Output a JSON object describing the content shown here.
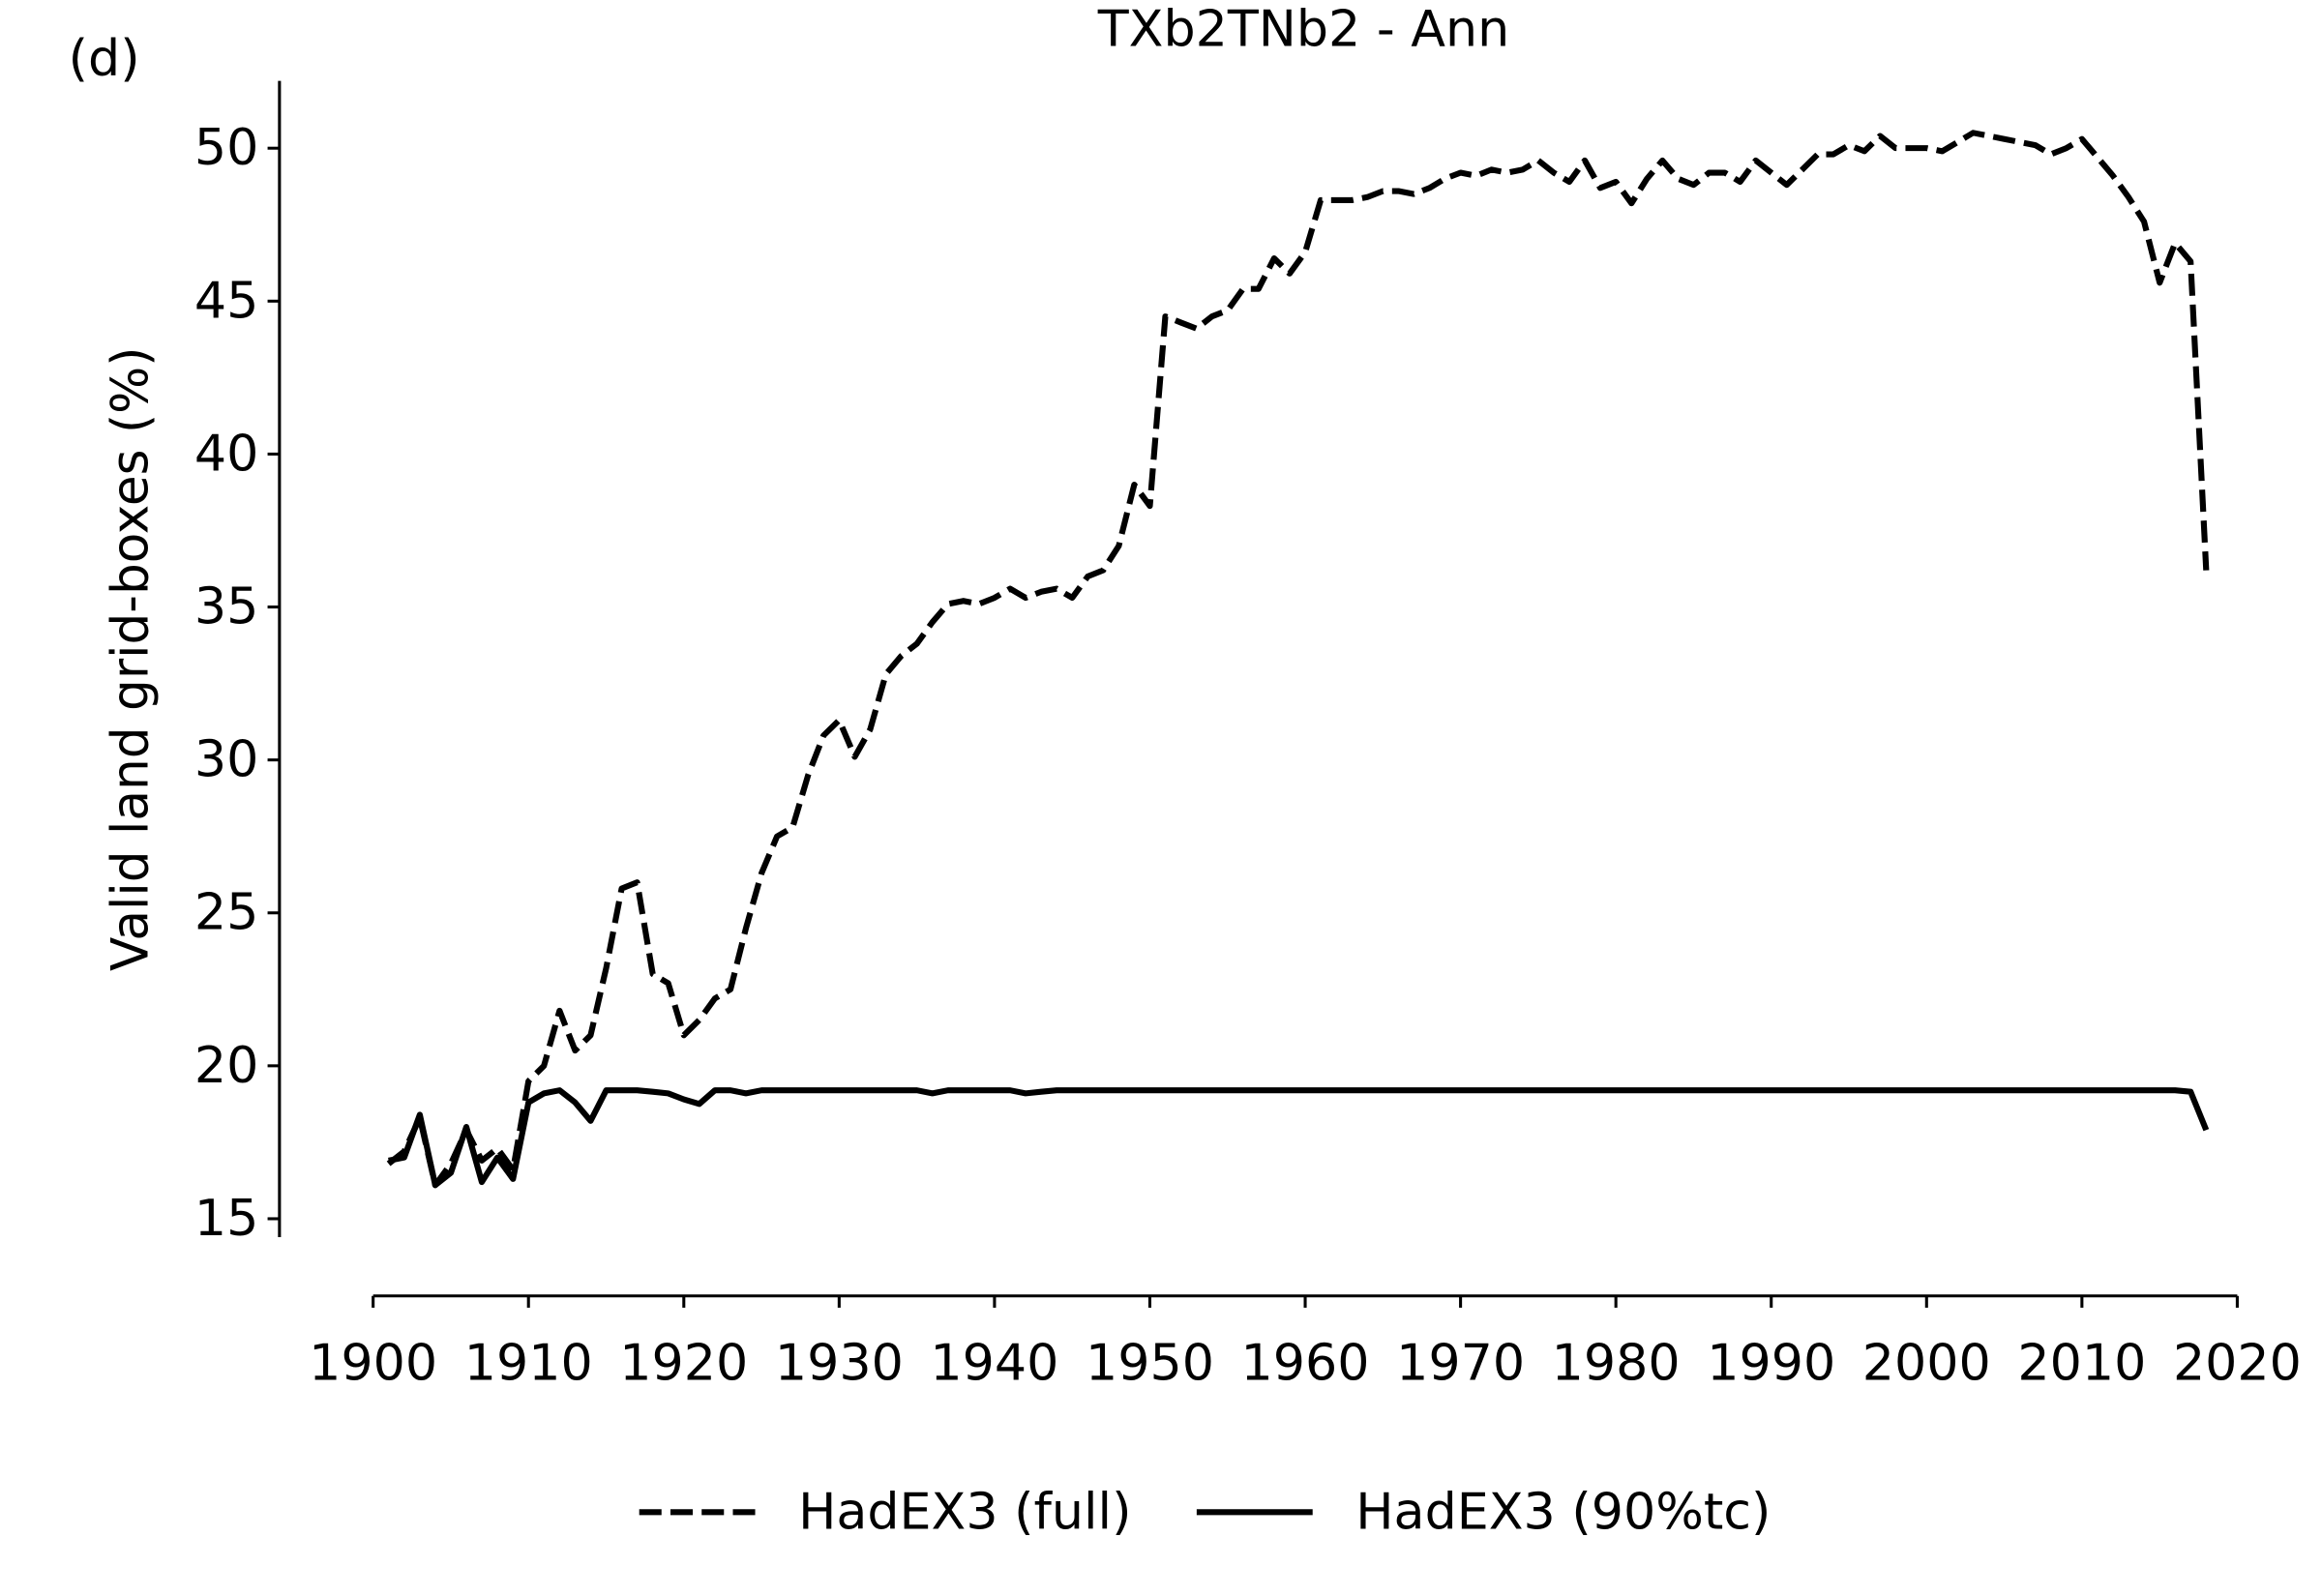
{
  "chart_data": {
    "type": "line",
    "title": "TXb2TNb2 - Ann",
    "panel_label": "(d)",
    "y_label": "Valid land grid-boxes (%)",
    "x": [
      1901,
      1902,
      1903,
      1904,
      1905,
      1906,
      1907,
      1908,
      1909,
      1910,
      1911,
      1912,
      1913,
      1914,
      1915,
      1916,
      1917,
      1918,
      1919,
      1920,
      1921,
      1922,
      1923,
      1924,
      1925,
      1926,
      1927,
      1928,
      1929,
      1930,
      1931,
      1932,
      1933,
      1934,
      1935,
      1936,
      1937,
      1938,
      1939,
      1940,
      1941,
      1942,
      1943,
      1944,
      1945,
      1946,
      1947,
      1948,
      1949,
      1950,
      1951,
      1952,
      1953,
      1954,
      1955,
      1956,
      1957,
      1958,
      1959,
      1960,
      1961,
      1962,
      1963,
      1964,
      1965,
      1966,
      1967,
      1968,
      1969,
      1970,
      1971,
      1972,
      1973,
      1974,
      1975,
      1976,
      1977,
      1978,
      1979,
      1980,
      1981,
      1982,
      1983,
      1984,
      1985,
      1986,
      1987,
      1988,
      1989,
      1990,
      1991,
      1992,
      1993,
      1994,
      1995,
      1996,
      1997,
      1998,
      1999,
      2000,
      2001,
      2002,
      2003,
      2004,
      2005,
      2006,
      2007,
      2008,
      2009,
      2010,
      2011,
      2012,
      2013,
      2014,
      2015,
      2016,
      2017,
      2018
    ],
    "series": [
      {
        "name": "HadEX3 (full)",
        "color": "#000000",
        "linestyle": "dashed",
        "values": [
          16.8,
          17.2,
          18.3,
          16.1,
          16.8,
          17.9,
          16.9,
          17.3,
          16.6,
          19.5,
          20.0,
          21.8,
          20.5,
          21.0,
          23.2,
          25.8,
          26.0,
          23.0,
          22.7,
          21.0,
          21.5,
          22.2,
          22.5,
          24.5,
          26.3,
          27.5,
          27.8,
          29.5,
          30.8,
          31.3,
          30.1,
          31.0,
          32.8,
          33.4,
          33.8,
          34.5,
          35.1,
          35.2,
          35.1,
          35.3,
          35.6,
          35.3,
          35.5,
          35.6,
          35.3,
          36.0,
          36.2,
          37.0,
          39.0,
          38.3,
          44.5,
          44.3,
          44.1,
          44.5,
          44.7,
          45.4,
          45.4,
          46.4,
          45.9,
          46.6,
          48.3,
          48.3,
          48.3,
          48.4,
          48.6,
          48.6,
          48.5,
          48.7,
          49.0,
          49.2,
          49.1,
          49.3,
          49.2,
          49.3,
          49.6,
          49.2,
          48.9,
          49.6,
          48.7,
          48.9,
          48.2,
          49.0,
          49.6,
          49.0,
          48.8,
          49.2,
          49.2,
          48.9,
          49.6,
          49.2,
          48.8,
          49.3,
          49.8,
          49.8,
          50.1,
          49.9,
          50.4,
          50.0,
          50.0,
          50.0,
          49.9,
          50.2,
          50.5,
          50.4,
          50.3,
          50.2,
          50.1,
          49.8,
          50.0,
          50.3,
          49.7,
          49.1,
          48.4,
          47.6,
          45.6,
          46.9,
          46.3,
          36.2
        ]
      },
      {
        "name": "HadEX3 (90%tc)",
        "color": "#000000",
        "linestyle": "solid",
        "values": [
          16.9,
          17.0,
          18.4,
          16.1,
          16.5,
          18.0,
          16.2,
          17.0,
          16.3,
          18.8,
          19.1,
          19.2,
          18.8,
          18.2,
          19.2,
          19.2,
          19.2,
          19.15,
          19.1,
          18.9,
          18.75,
          19.2,
          19.2,
          19.1,
          19.2,
          19.2,
          19.2,
          19.2,
          19.2,
          19.2,
          19.2,
          19.2,
          19.2,
          19.2,
          19.2,
          19.1,
          19.2,
          19.2,
          19.2,
          19.2,
          19.2,
          19.1,
          19.15,
          19.2,
          19.2,
          19.2,
          19.2,
          19.2,
          19.2,
          19.2,
          19.2,
          19.2,
          19.2,
          19.2,
          19.2,
          19.2,
          19.2,
          19.2,
          19.2,
          19.2,
          19.2,
          19.2,
          19.2,
          19.2,
          19.2,
          19.2,
          19.2,
          19.2,
          19.2,
          19.2,
          19.2,
          19.2,
          19.2,
          19.2,
          19.2,
          19.2,
          19.2,
          19.2,
          19.2,
          19.2,
          19.2,
          19.2,
          19.2,
          19.2,
          19.2,
          19.2,
          19.2,
          19.2,
          19.2,
          19.2,
          19.2,
          19.2,
          19.2,
          19.2,
          19.2,
          19.2,
          19.2,
          19.2,
          19.2,
          19.2,
          19.2,
          19.2,
          19.2,
          19.2,
          19.2,
          19.2,
          19.2,
          19.2,
          19.2,
          19.2,
          19.2,
          19.2,
          19.2,
          19.2,
          19.2,
          19.2,
          19.15,
          17.9
        ]
      }
    ],
    "xlim": [
      1900,
      2020
    ],
    "xticks": [
      1900,
      1910,
      1920,
      1930,
      1940,
      1950,
      1960,
      1970,
      1980,
      1990,
      2000,
      2010,
      2020
    ],
    "ylim": [
      14.4,
      52.2
    ],
    "yticks": [
      15,
      20,
      25,
      30,
      35,
      40,
      45,
      50
    ],
    "grid": false,
    "legend": "bottom"
  }
}
